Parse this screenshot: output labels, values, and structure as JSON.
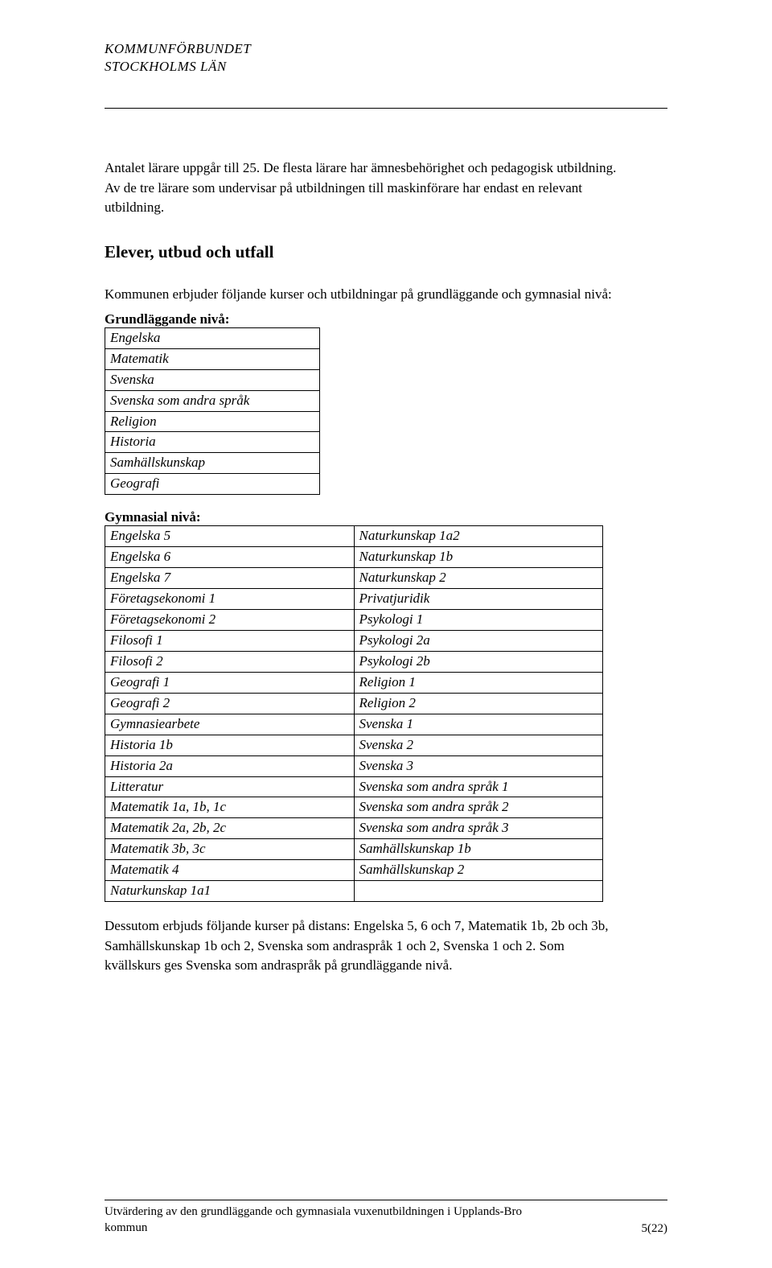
{
  "header": {
    "org_line1": "KOMMUNFÖRBUNDET",
    "org_line2": "STOCKHOLMS LÄN"
  },
  "body": {
    "para1": "Antalet lärare uppgår till 25. De flesta lärare har ämnesbehörighet och pedagogisk utbildning. Av de tre lärare som undervisar på utbildningen till maskinförare har endast en relevant utbildning.",
    "section_heading": "Elever, utbud och utfall",
    "para2": "Kommunen erbjuder följande kurser och utbildningar på grundläggande och gymnasial nivå:",
    "grund_heading": "Grundläggande nivå:",
    "grund_rows": [
      "Engelska",
      "Matematik",
      "Svenska",
      "Svenska som andra språk",
      "Religion",
      "Historia",
      "Samhällskunskap",
      "Geografi"
    ],
    "gymn_heading": "Gymnasial nivå:",
    "gymn_rows": [
      [
        "Engelska 5",
        "Naturkunskap 1a2"
      ],
      [
        "Engelska 6",
        "Naturkunskap 1b"
      ],
      [
        "Engelska 7",
        "Naturkunskap 2"
      ],
      [
        "Företagsekonomi 1",
        "Privatjuridik"
      ],
      [
        "Företagsekonomi 2",
        "Psykologi 1"
      ],
      [
        "Filosofi 1",
        "Psykologi 2a"
      ],
      [
        "Filosofi 2",
        "Psykologi 2b"
      ],
      [
        "Geografi 1",
        "Religion 1"
      ],
      [
        "Geografi 2",
        "Religion 2"
      ],
      [
        "Gymnasiearbete",
        "Svenska 1"
      ],
      [
        "Historia 1b",
        "Svenska 2"
      ],
      [
        "Historia 2a",
        "Svenska 3"
      ],
      [
        "Litteratur",
        "Svenska som andra språk 1"
      ],
      [
        "Matematik 1a, 1b, 1c",
        "Svenska som andra språk 2"
      ],
      [
        "Matematik 2a, 2b, 2c",
        "Svenska som andra språk 3"
      ],
      [
        "Matematik 3b, 3c",
        "Samhällskunskap 1b"
      ],
      [
        "Matematik 4",
        "Samhällskunskap 2"
      ],
      [
        "Naturkunskap 1a1",
        ""
      ]
    ],
    "para3": "Dessutom erbjuds följande kurser på distans: Engelska 5, 6 och 7, Matematik 1b, 2b och 3b, Samhällskunskap 1b och 2, Svenska som andraspråk 1 och 2, Svenska 1 och 2. Som kvällskurs ges Svenska som andraspråk på grundläggande nivå."
  },
  "footer": {
    "line1": "Utvärdering av den grundläggande och gymnasiala vuxenutbildningen i Upplands-Bro",
    "line2": "kommun",
    "page": "5(22)"
  }
}
